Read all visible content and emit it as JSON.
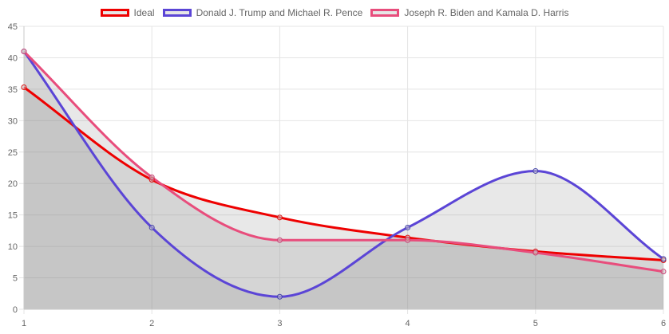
{
  "chart_data": {
    "type": "line",
    "title": "",
    "xlabel": "",
    "ylabel": "",
    "x": [
      1,
      2,
      3,
      4,
      5,
      6
    ],
    "xlim": [
      1,
      6
    ],
    "ylim": [
      0,
      45
    ],
    "y_ticks": [
      0,
      5,
      10,
      15,
      20,
      25,
      30,
      35,
      40,
      45
    ],
    "grid": true,
    "legend_position": "top",
    "series": [
      {
        "name": "Ideal",
        "values": [
          35.3,
          20.6,
          14.6,
          11.4,
          9.2,
          7.8
        ],
        "color": "#ee0000",
        "fill": true
      },
      {
        "name": "Donald J. Trump and Michael R. Pence",
        "values": [
          41,
          13,
          2,
          13,
          22,
          8
        ],
        "color": "#5b45d6",
        "fill": true
      },
      {
        "name": "Joseph R. Biden and Kamala D. Harris",
        "values": [
          41,
          21,
          11,
          11,
          9,
          6
        ],
        "color": "#e84d7c",
        "fill": true
      }
    ]
  }
}
